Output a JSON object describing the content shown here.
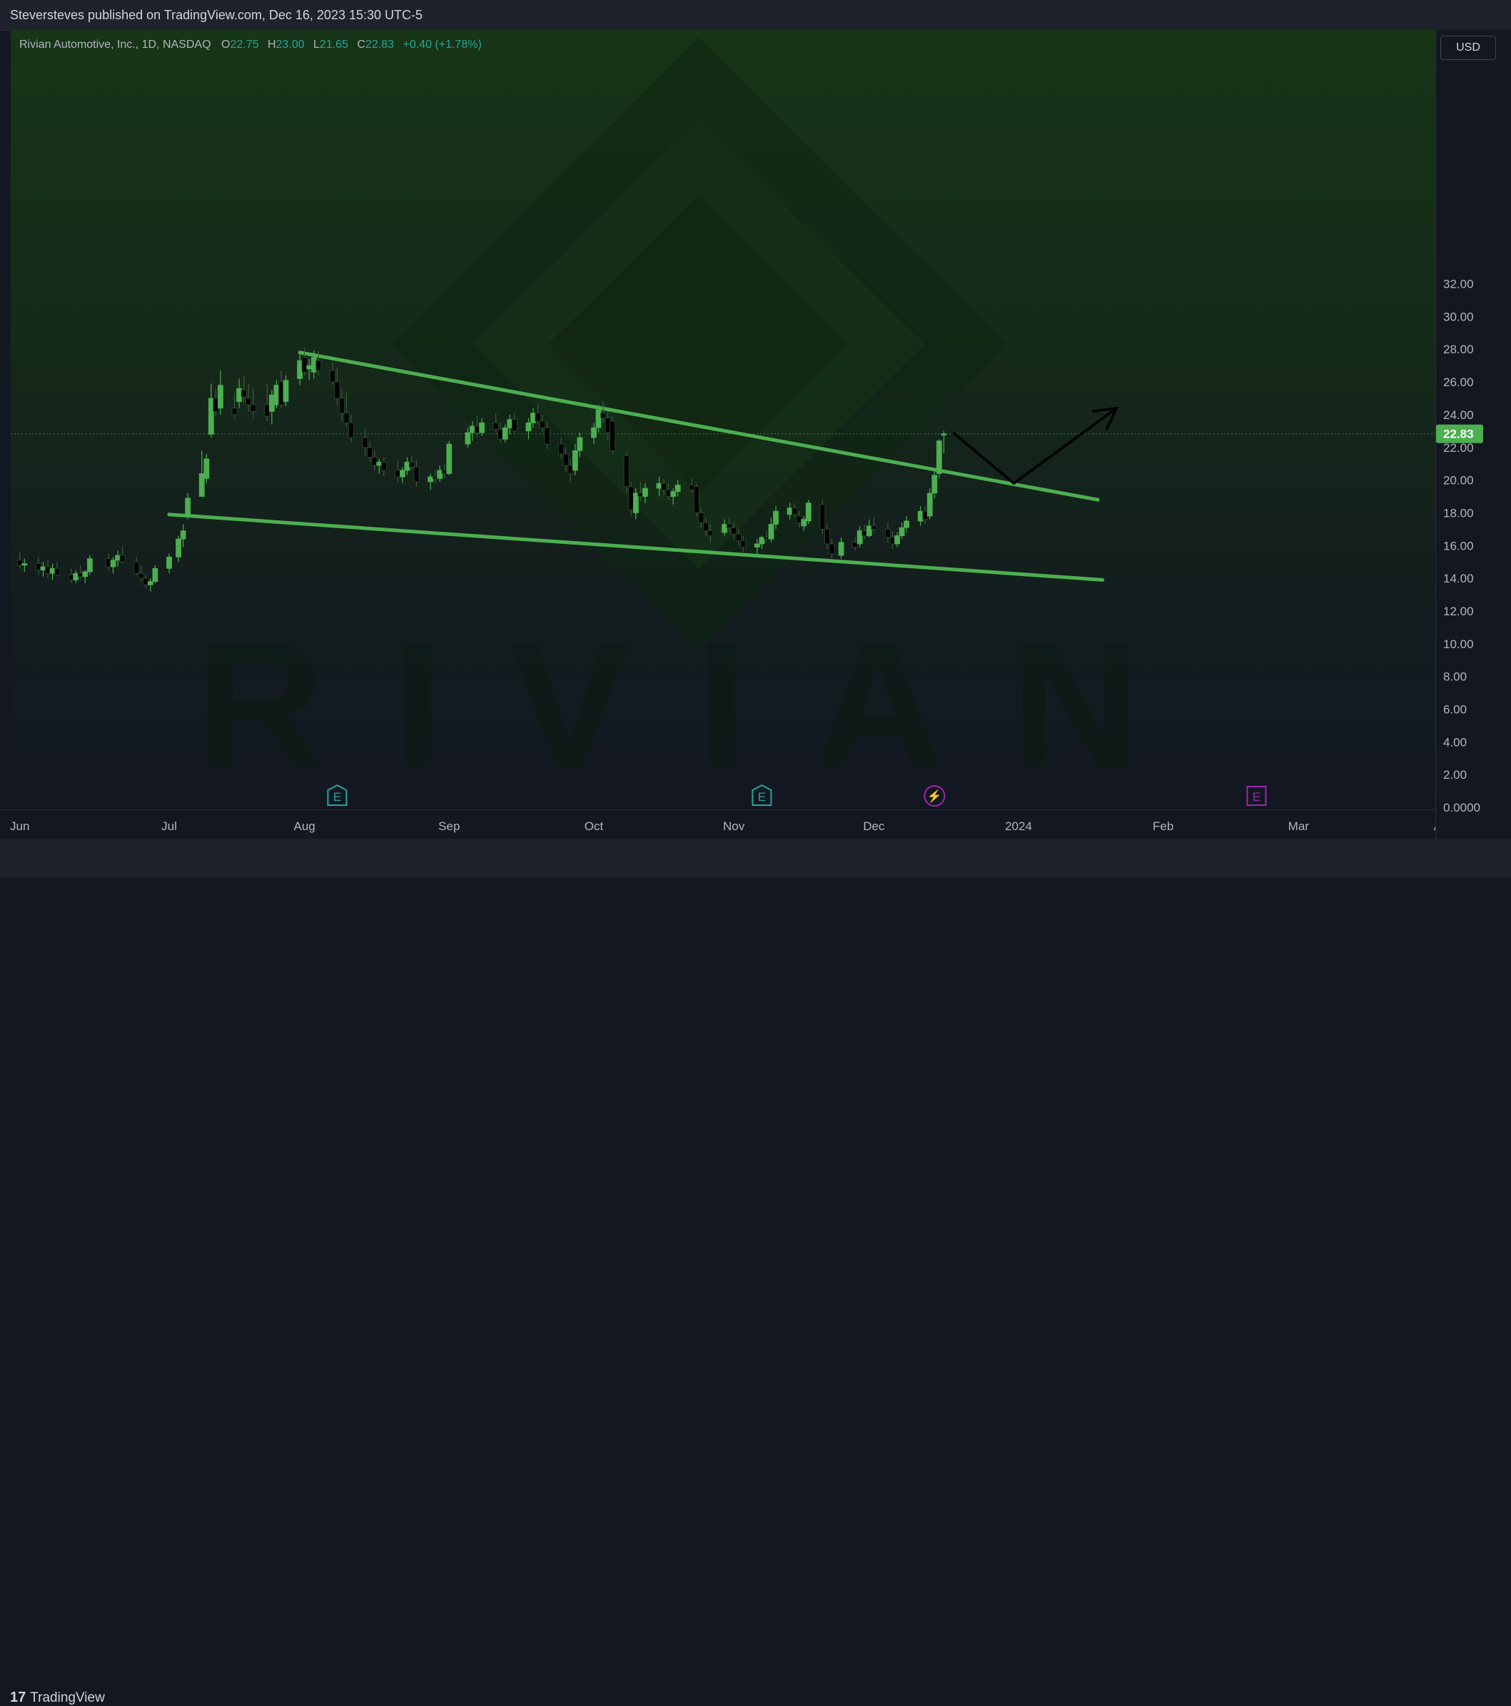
{
  "header": {
    "publisher_line": "Steversteves published on TradingView.com, Dec 16, 2023 15:30 UTC-5"
  },
  "legend": {
    "symbol": "Rivian Automotive, Inc., 1D, NASDAQ",
    "open_label": "O",
    "open": "22.75",
    "high_label": "H",
    "high": "23.00",
    "low_label": "L",
    "low": "21.65",
    "close_label": "C",
    "close": "22.83",
    "change": "+0.40 (+1.78%)"
  },
  "currency_button": "USD",
  "watermark": "RIVIAN",
  "footer": {
    "brand": "TradingView"
  },
  "colors": {
    "up": "#26a69a",
    "candle_up_body": "#4caf50",
    "candle_down_body": "#000000",
    "trendline": "#4caf50",
    "price_badge": "#4caf50",
    "earnings_green": "#26a69a",
    "earnings_purple": "#9c27b0"
  },
  "chart_data": {
    "type": "candlestick",
    "ylim": [
      0,
      35
    ],
    "ytick_labels": [
      "32.00",
      "30.00",
      "28.00",
      "26.00",
      "24.00",
      "22.00",
      "20.00",
      "18.00",
      "16.00",
      "14.00",
      "12.00",
      "10.00",
      "8.00",
      "6.00",
      "4.00",
      "2.00",
      "0.0000"
    ],
    "xtick_labels": [
      "Jun",
      "Jul",
      "Aug",
      "Sep",
      "Oct",
      "Nov",
      "Dec",
      "2024",
      "Feb",
      "Mar",
      "Apr"
    ],
    "last_price": "22.83",
    "candles": [
      {
        "date": "2023-06-01",
        "o": 15.1,
        "h": 15.6,
        "l": 14.6,
        "c": 14.8
      },
      {
        "date": "2023-06-02",
        "o": 14.8,
        "h": 15.2,
        "l": 14.4,
        "c": 14.9
      },
      {
        "date": "2023-06-05",
        "o": 14.9,
        "h": 15.3,
        "l": 14.2,
        "c": 14.5
      },
      {
        "date": "2023-06-06",
        "o": 14.5,
        "h": 15.0,
        "l": 14.1,
        "c": 14.7
      },
      {
        "date": "2023-06-07",
        "o": 14.7,
        "h": 15.1,
        "l": 14.0,
        "c": 14.3
      },
      {
        "date": "2023-06-08",
        "o": 14.3,
        "h": 14.9,
        "l": 13.9,
        "c": 14.6
      },
      {
        "date": "2023-06-09",
        "o": 14.6,
        "h": 15.0,
        "l": 14.1,
        "c": 14.2
      },
      {
        "date": "2023-06-12",
        "o": 14.2,
        "h": 14.6,
        "l": 13.7,
        "c": 13.9
      },
      {
        "date": "2023-06-13",
        "o": 13.9,
        "h": 14.5,
        "l": 13.7,
        "c": 14.3
      },
      {
        "date": "2023-06-14",
        "o": 14.3,
        "h": 14.8,
        "l": 13.9,
        "c": 14.1
      },
      {
        "date": "2023-06-15",
        "o": 14.1,
        "h": 14.5,
        "l": 13.7,
        "c": 14.4
      },
      {
        "date": "2023-06-16",
        "o": 14.4,
        "h": 15.4,
        "l": 14.2,
        "c": 15.2
      },
      {
        "date": "2023-06-20",
        "o": 15.2,
        "h": 15.5,
        "l": 14.5,
        "c": 14.7
      },
      {
        "date": "2023-06-21",
        "o": 14.7,
        "h": 15.3,
        "l": 14.3,
        "c": 15.1
      },
      {
        "date": "2023-06-22",
        "o": 15.1,
        "h": 15.7,
        "l": 14.7,
        "c": 15.4
      },
      {
        "date": "2023-06-23",
        "o": 15.4,
        "h": 16.0,
        "l": 14.9,
        "c": 15.0
      },
      {
        "date": "2023-06-26",
        "o": 15.0,
        "h": 15.3,
        "l": 14.2,
        "c": 14.3
      },
      {
        "date": "2023-06-27",
        "o": 14.3,
        "h": 14.8,
        "l": 13.8,
        "c": 14.0
      },
      {
        "date": "2023-06-28",
        "o": 14.0,
        "h": 14.2,
        "l": 13.4,
        "c": 13.6
      },
      {
        "date": "2023-06-29",
        "o": 13.6,
        "h": 14.0,
        "l": 13.2,
        "c": 13.8
      },
      {
        "date": "2023-06-30",
        "o": 13.8,
        "h": 14.8,
        "l": 13.7,
        "c": 14.6
      },
      {
        "date": "2023-07-03",
        "o": 14.6,
        "h": 15.5,
        "l": 14.3,
        "c": 15.3
      },
      {
        "date": "2023-07-05",
        "o": 15.3,
        "h": 16.6,
        "l": 15.0,
        "c": 16.4
      },
      {
        "date": "2023-07-06",
        "o": 16.4,
        "h": 17.3,
        "l": 15.9,
        "c": 16.9
      },
      {
        "date": "2023-07-07",
        "o": 17.9,
        "h": 19.2,
        "l": 17.6,
        "c": 18.9
      },
      {
        "date": "2023-07-10",
        "o": 19.0,
        "h": 21.8,
        "l": 19.0,
        "c": 20.4
      },
      {
        "date": "2023-07-11",
        "o": 20.1,
        "h": 21.6,
        "l": 19.8,
        "c": 21.3
      },
      {
        "date": "2023-07-12",
        "o": 22.8,
        "h": 25.9,
        "l": 22.6,
        "c": 25.0
      },
      {
        "date": "2023-07-13",
        "o": 25.0,
        "h": 25.6,
        "l": 23.9,
        "c": 24.2
      },
      {
        "date": "2023-07-14",
        "o": 24.4,
        "h": 26.7,
        "l": 24.0,
        "c": 25.8
      },
      {
        "date": "2023-07-17",
        "o": 24.4,
        "h": 25.3,
        "l": 23.8,
        "c": 24.0
      },
      {
        "date": "2023-07-18",
        "o": 24.8,
        "h": 26.2,
        "l": 24.4,
        "c": 25.6
      },
      {
        "date": "2023-07-19",
        "o": 25.5,
        "h": 26.4,
        "l": 24.7,
        "c": 25.1
      },
      {
        "date": "2023-07-20",
        "o": 25.0,
        "h": 25.9,
        "l": 24.2,
        "c": 24.6
      },
      {
        "date": "2023-07-21",
        "o": 24.6,
        "h": 25.6,
        "l": 23.8,
        "c": 24.2
      },
      {
        "date": "2023-07-24",
        "o": 24.6,
        "h": 25.9,
        "l": 23.6,
        "c": 23.9
      },
      {
        "date": "2023-07-25",
        "o": 24.2,
        "h": 25.5,
        "l": 23.4,
        "c": 25.2
      },
      {
        "date": "2023-07-26",
        "o": 24.6,
        "h": 26.1,
        "l": 24.4,
        "c": 25.8
      },
      {
        "date": "2023-07-27",
        "o": 26.0,
        "h": 26.7,
        "l": 24.4,
        "c": 24.6
      },
      {
        "date": "2023-07-28",
        "o": 24.8,
        "h": 26.4,
        "l": 24.5,
        "c": 26.1
      },
      {
        "date": "2023-07-31",
        "o": 26.2,
        "h": 27.7,
        "l": 25.8,
        "c": 27.3
      },
      {
        "date": "2023-08-01",
        "o": 27.5,
        "h": 28.1,
        "l": 26.4,
        "c": 26.6
      },
      {
        "date": "2023-08-02",
        "o": 26.8,
        "h": 27.4,
        "l": 26.1,
        "c": 27.0
      },
      {
        "date": "2023-08-03",
        "o": 26.6,
        "h": 27.9,
        "l": 26.2,
        "c": 27.5
      },
      {
        "date": "2023-08-04",
        "o": 27.3,
        "h": 27.9,
        "l": 26.4,
        "c": 26.7
      },
      {
        "date": "2023-08-07",
        "o": 26.7,
        "h": 27.2,
        "l": 25.8,
        "c": 26.0
      },
      {
        "date": "2023-08-08",
        "o": 26.0,
        "h": 26.9,
        "l": 24.6,
        "c": 25.0
      },
      {
        "date": "2023-08-09",
        "o": 25.0,
        "h": 25.6,
        "l": 23.6,
        "c": 24.1
      },
      {
        "date": "2023-08-10",
        "o": 24.1,
        "h": 25.4,
        "l": 23.3,
        "c": 23.5
      },
      {
        "date": "2023-08-11",
        "o": 23.5,
        "h": 24.0,
        "l": 22.3,
        "c": 22.6
      },
      {
        "date": "2023-08-14",
        "o": 22.6,
        "h": 23.2,
        "l": 21.5,
        "c": 22.0
      },
      {
        "date": "2023-08-15",
        "o": 22.0,
        "h": 22.3,
        "l": 21.1,
        "c": 21.4
      },
      {
        "date": "2023-08-16",
        "o": 21.4,
        "h": 21.8,
        "l": 20.6,
        "c": 20.9
      },
      {
        "date": "2023-08-17",
        "o": 20.9,
        "h": 21.3,
        "l": 20.4,
        "c": 21.1
      },
      {
        "date": "2023-08-18",
        "o": 21.1,
        "h": 21.4,
        "l": 20.2,
        "c": 20.6
      },
      {
        "date": "2023-08-21",
        "o": 20.6,
        "h": 21.2,
        "l": 19.9,
        "c": 20.2
      },
      {
        "date": "2023-08-22",
        "o": 20.2,
        "h": 20.8,
        "l": 19.8,
        "c": 20.6
      },
      {
        "date": "2023-08-23",
        "o": 20.6,
        "h": 21.4,
        "l": 20.3,
        "c": 21.1
      },
      {
        "date": "2023-08-24",
        "o": 21.1,
        "h": 21.5,
        "l": 20.6,
        "c": 20.8
      },
      {
        "date": "2023-08-25",
        "o": 20.8,
        "h": 21.2,
        "l": 19.6,
        "c": 19.9
      },
      {
        "date": "2023-08-28",
        "o": 19.9,
        "h": 20.4,
        "l": 19.4,
        "c": 20.2
      },
      {
        "date": "2023-08-29",
        "o": 20.2,
        "h": 20.6,
        "l": 19.8,
        "c": 20.1
      },
      {
        "date": "2023-08-30",
        "o": 20.1,
        "h": 20.9,
        "l": 19.9,
        "c": 20.6
      },
      {
        "date": "2023-08-31",
        "o": 20.6,
        "h": 21.0,
        "l": 20.1,
        "c": 20.4
      },
      {
        "date": "2023-09-01",
        "o": 20.4,
        "h": 22.4,
        "l": 20.3,
        "c": 22.2
      },
      {
        "date": "2023-09-05",
        "o": 22.2,
        "h": 23.2,
        "l": 22.0,
        "c": 22.9
      },
      {
        "date": "2023-09-06",
        "o": 22.9,
        "h": 23.6,
        "l": 22.4,
        "c": 23.3
      },
      {
        "date": "2023-09-07",
        "o": 23.3,
        "h": 23.9,
        "l": 22.6,
        "c": 22.9
      },
      {
        "date": "2023-09-08",
        "o": 22.9,
        "h": 23.8,
        "l": 22.7,
        "c": 23.5
      },
      {
        "date": "2023-09-11",
        "o": 23.5,
        "h": 24.1,
        "l": 22.9,
        "c": 23.1
      },
      {
        "date": "2023-09-12",
        "o": 23.1,
        "h": 23.5,
        "l": 22.3,
        "c": 22.5
      },
      {
        "date": "2023-09-13",
        "o": 22.5,
        "h": 23.4,
        "l": 22.3,
        "c": 23.2
      },
      {
        "date": "2023-09-14",
        "o": 23.2,
        "h": 24.0,
        "l": 22.8,
        "c": 23.7
      },
      {
        "date": "2023-09-15",
        "o": 23.7,
        "h": 24.1,
        "l": 22.9,
        "c": 23.0
      },
      {
        "date": "2023-09-18",
        "o": 23.0,
        "h": 23.8,
        "l": 22.5,
        "c": 23.5
      },
      {
        "date": "2023-09-19",
        "o": 23.5,
        "h": 24.4,
        "l": 23.2,
        "c": 24.1
      },
      {
        "date": "2023-09-20",
        "o": 24.1,
        "h": 24.6,
        "l": 23.4,
        "c": 23.6
      },
      {
        "date": "2023-09-21",
        "o": 23.6,
        "h": 24.0,
        "l": 22.9,
        "c": 23.2
      },
      {
        "date": "2023-09-22",
        "o": 23.2,
        "h": 23.6,
        "l": 21.9,
        "c": 22.2
      },
      {
        "date": "2023-09-25",
        "o": 22.2,
        "h": 22.6,
        "l": 21.3,
        "c": 21.6
      },
      {
        "date": "2023-09-26",
        "o": 21.6,
        "h": 22.0,
        "l": 20.5,
        "c": 20.9
      },
      {
        "date": "2023-09-27",
        "o": 20.9,
        "h": 21.3,
        "l": 19.9,
        "c": 20.4
      },
      {
        "date": "2023-09-28",
        "o": 20.6,
        "h": 22.2,
        "l": 20.3,
        "c": 21.8
      },
      {
        "date": "2023-09-29",
        "o": 21.8,
        "h": 22.9,
        "l": 21.4,
        "c": 22.6
      },
      {
        "date": "2023-10-02",
        "o": 22.6,
        "h": 23.5,
        "l": 22.2,
        "c": 23.2
      },
      {
        "date": "2023-10-03",
        "o": 23.2,
        "h": 24.6,
        "l": 22.9,
        "c": 24.3
      },
      {
        "date": "2023-10-04",
        "o": 24.1,
        "h": 24.8,
        "l": 23.5,
        "c": 23.8
      },
      {
        "date": "2023-10-05",
        "o": 23.8,
        "h": 24.2,
        "l": 22.4,
        "c": 22.9
      },
      {
        "date": "2023-10-06",
        "o": 23.6,
        "h": 23.9,
        "l": 21.6,
        "c": 21.8
      },
      {
        "date": "2023-10-09",
        "o": 21.5,
        "h": 21.7,
        "l": 19.2,
        "c": 19.6
      },
      {
        "date": "2023-10-10",
        "o": 19.6,
        "h": 19.9,
        "l": 17.8,
        "c": 18.2
      },
      {
        "date": "2023-10-11",
        "o": 18.0,
        "h": 19.5,
        "l": 17.6,
        "c": 19.2
      },
      {
        "date": "2023-10-12",
        "o": 19.2,
        "h": 19.9,
        "l": 18.7,
        "c": 19.0
      },
      {
        "date": "2023-10-13",
        "o": 19.0,
        "h": 19.8,
        "l": 18.6,
        "c": 19.5
      },
      {
        "date": "2023-10-16",
        "o": 19.5,
        "h": 20.2,
        "l": 19.0,
        "c": 19.8
      },
      {
        "date": "2023-10-17",
        "o": 19.8,
        "h": 20.1,
        "l": 19.1,
        "c": 19.4
      },
      {
        "date": "2023-10-18",
        "o": 19.4,
        "h": 19.8,
        "l": 18.8,
        "c": 19.0
      },
      {
        "date": "2023-10-19",
        "o": 19.0,
        "h": 19.5,
        "l": 18.5,
        "c": 19.3
      },
      {
        "date": "2023-10-20",
        "o": 19.3,
        "h": 20.0,
        "l": 19.0,
        "c": 19.7
      },
      {
        "date": "2023-10-23",
        "o": 19.7,
        "h": 20.1,
        "l": 19.2,
        "c": 19.4
      },
      {
        "date": "2023-10-24",
        "o": 19.6,
        "h": 19.8,
        "l": 17.8,
        "c": 18.0
      },
      {
        "date": "2023-10-25",
        "o": 18.0,
        "h": 18.3,
        "l": 17.1,
        "c": 17.4
      },
      {
        "date": "2023-10-26",
        "o": 17.4,
        "h": 17.7,
        "l": 16.6,
        "c": 16.9
      },
      {
        "date": "2023-10-27",
        "o": 16.9,
        "h": 17.3,
        "l": 16.2,
        "c": 16.6
      },
      {
        "date": "2023-10-30",
        "o": 16.8,
        "h": 17.6,
        "l": 16.6,
        "c": 17.3
      },
      {
        "date": "2023-10-31",
        "o": 17.3,
        "h": 17.7,
        "l": 16.8,
        "c": 17.1
      },
      {
        "date": "2023-11-01",
        "o": 17.1,
        "h": 17.4,
        "l": 16.4,
        "c": 16.7
      },
      {
        "date": "2023-11-02",
        "o": 16.7,
        "h": 17.0,
        "l": 16.0,
        "c": 16.3
      },
      {
        "date": "2023-11-03",
        "o": 16.3,
        "h": 16.6,
        "l": 15.6,
        "c": 15.9
      },
      {
        "date": "2023-11-06",
        "o": 15.9,
        "h": 16.4,
        "l": 15.5,
        "c": 16.1
      },
      {
        "date": "2023-11-07",
        "o": 16.1,
        "h": 16.6,
        "l": 15.8,
        "c": 16.5
      },
      {
        "date": "2023-11-08",
        "o": 16.5,
        "h": 16.9,
        "l": 16.2,
        "c": 16.4
      },
      {
        "date": "2023-11-09",
        "o": 16.4,
        "h": 17.7,
        "l": 16.2,
        "c": 17.3
      },
      {
        "date": "2023-11-10",
        "o": 17.3,
        "h": 18.4,
        "l": 17.0,
        "c": 18.1
      },
      {
        "date": "2023-11-13",
        "o": 17.9,
        "h": 18.6,
        "l": 17.6,
        "c": 18.3
      },
      {
        "date": "2023-11-14",
        "o": 18.3,
        "h": 18.6,
        "l": 17.7,
        "c": 17.9
      },
      {
        "date": "2023-11-15",
        "o": 17.8,
        "h": 18.1,
        "l": 17.1,
        "c": 17.4
      },
      {
        "date": "2023-11-16",
        "o": 17.2,
        "h": 17.8,
        "l": 16.9,
        "c": 17.6
      },
      {
        "date": "2023-11-17",
        "o": 17.5,
        "h": 18.8,
        "l": 17.3,
        "c": 18.6
      },
      {
        "date": "2023-11-20",
        "o": 18.5,
        "h": 18.8,
        "l": 16.7,
        "c": 17.0
      },
      {
        "date": "2023-11-21",
        "o": 17.0,
        "h": 17.3,
        "l": 15.8,
        "c": 16.1
      },
      {
        "date": "2023-11-22",
        "o": 16.1,
        "h": 16.4,
        "l": 15.2,
        "c": 15.5
      },
      {
        "date": "2023-11-24",
        "o": 15.4,
        "h": 16.5,
        "l": 15.2,
        "c": 16.2
      },
      {
        "date": "2023-11-27",
        "o": 16.2,
        "h": 16.5,
        "l": 15.7,
        "c": 15.9
      },
      {
        "date": "2023-11-28",
        "o": 16.1,
        "h": 17.2,
        "l": 15.9,
        "c": 16.9
      },
      {
        "date": "2023-11-29",
        "o": 16.9,
        "h": 17.3,
        "l": 16.4,
        "c": 16.6
      },
      {
        "date": "2023-11-30",
        "o": 16.6,
        "h": 17.6,
        "l": 16.5,
        "c": 17.2
      },
      {
        "date": "2023-12-01",
        "o": 17.2,
        "h": 17.7,
        "l": 16.8,
        "c": 17.0
      },
      {
        "date": "2023-12-04",
        "o": 17.0,
        "h": 17.4,
        "l": 16.2,
        "c": 16.5
      },
      {
        "date": "2023-12-05",
        "o": 16.5,
        "h": 16.9,
        "l": 15.8,
        "c": 16.1
      },
      {
        "date": "2023-12-06",
        "o": 16.1,
        "h": 16.8,
        "l": 15.9,
        "c": 16.6
      },
      {
        "date": "2023-12-07",
        "o": 16.6,
        "h": 17.4,
        "l": 16.4,
        "c": 17.1
      },
      {
        "date": "2023-12-08",
        "o": 17.1,
        "h": 17.8,
        "l": 16.8,
        "c": 17.5
      },
      {
        "date": "2023-12-11",
        "o": 17.5,
        "h": 18.4,
        "l": 17.2,
        "c": 18.1
      },
      {
        "date": "2023-12-12",
        "o": 18.1,
        "h": 18.4,
        "l": 17.3,
        "c": 17.6
      },
      {
        "date": "2023-12-13",
        "o": 17.8,
        "h": 19.5,
        "l": 17.6,
        "c": 19.2
      },
      {
        "date": "2023-12-14",
        "o": 19.2,
        "h": 20.6,
        "l": 18.9,
        "c": 20.3
      },
      {
        "date": "2023-12-15",
        "o": 20.4,
        "h": 22.5,
        "l": 20.1,
        "c": 22.4
      },
      {
        "date": "2023-12-16",
        "o": 22.75,
        "h": 23.0,
        "l": 21.65,
        "c": 22.83
      }
    ],
    "trendlines": [
      {
        "name": "upper",
        "from": {
          "date": "2023-07-31",
          "y": 27.8
        },
        "to": {
          "date": "2024-01-18",
          "y": 18.8
        }
      },
      {
        "name": "lower",
        "from": {
          "date": "2023-07-03",
          "y": 17.9
        },
        "to": {
          "date": "2024-01-19",
          "y": 13.9
        }
      }
    ],
    "projection_path": [
      {
        "date": "2023-12-18",
        "y": 22.9
      },
      {
        "date": "2023-12-31",
        "y": 19.8
      },
      {
        "date": "2024-01-22",
        "y": 24.4
      }
    ],
    "events": [
      {
        "date": "2023-08-08",
        "type": "earnings",
        "label": "E"
      },
      {
        "date": "2023-11-07",
        "type": "earnings",
        "label": "E"
      },
      {
        "date": "2023-12-14",
        "type": "dividend-flash",
        "label": "⚡"
      },
      {
        "date": "2024-02-21",
        "type": "earnings-upcoming",
        "label": "E"
      }
    ]
  }
}
